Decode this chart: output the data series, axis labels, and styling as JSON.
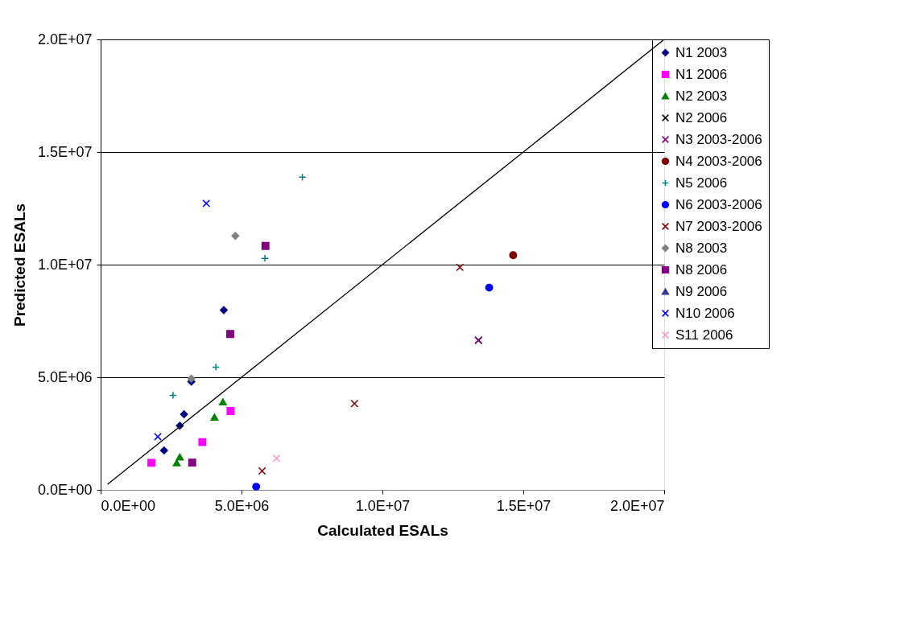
{
  "chart_data": {
    "type": "scatter",
    "xlabel": "Calculated ESALs",
    "ylabel": "Predicted ESALs",
    "xlim": [
      0,
      20000000
    ],
    "ylim": [
      0,
      20000000
    ],
    "xticks": [
      {
        "value": 0,
        "label": "0.0E+00"
      },
      {
        "value": 5000000,
        "label": "5.0E+06"
      },
      {
        "value": 10000000,
        "label": "1.0E+07"
      },
      {
        "value": 15000000,
        "label": "1.5E+07"
      },
      {
        "value": 20000000,
        "label": "2.0E+07"
      }
    ],
    "yticks": [
      {
        "value": 0,
        "label": "0.0E+00"
      },
      {
        "value": 5000000,
        "label": "5.0E+06"
      },
      {
        "value": 10000000,
        "label": "1.0E+07"
      },
      {
        "value": 15000000,
        "label": "1.5E+07"
      },
      {
        "value": 20000000,
        "label": "2.0E+07"
      }
    ],
    "grid": "y",
    "legend": "right",
    "series": [
      {
        "name": "N1 2003",
        "color": "#000080",
        "marker": "diamond",
        "x": [
          4370000,
          3220000,
          2960000,
          2810000,
          2250000
        ],
        "values": [
          7980000,
          4800000,
          3360000,
          2850000,
          1750000
        ]
      },
      {
        "name": "N1 2006",
        "color": "#ff00ff",
        "marker": "square",
        "x": [
          4610000,
          3610000,
          1800000
        ],
        "values": [
          3500000,
          2120000,
          1200000
        ]
      },
      {
        "name": "N2 2003",
        "color": "#008000",
        "marker": "triangle",
        "x": [
          4340000,
          4040000,
          2810000,
          2700000
        ],
        "values": [
          3910000,
          3230000,
          1460000,
          1200000
        ]
      },
      {
        "name": "N2 2006",
        "color": "#000000",
        "marker": "cross",
        "x": [
          13410000
        ],
        "values": [
          6640000
        ]
      },
      {
        "name": "N3 2003-2006",
        "color": "#800080",
        "marker": "cross",
        "x": [
          13410000
        ],
        "values": [
          6640000
        ]
      },
      {
        "name": "N4 2003-2006",
        "color": "#800000",
        "marker": "circle",
        "x": [
          14640000
        ],
        "values": [
          10420000
        ]
      },
      {
        "name": "N5 2006",
        "color": "#008080",
        "marker": "plus",
        "x": [
          7160000,
          5830000,
          4090000,
          2570000
        ],
        "values": [
          13880000,
          10280000,
          5450000,
          4200000
        ]
      },
      {
        "name": "N6 2003-2006",
        "color": "#0000ff",
        "marker": "circle",
        "x": [
          13790000,
          5520000
        ],
        "values": [
          8980000,
          140000
        ]
      },
      {
        "name": "N7 2003-2006",
        "color": "#800000",
        "marker": "cross",
        "x": [
          12750000,
          9010000,
          5730000
        ],
        "values": [
          9880000,
          3830000,
          840000
        ]
      },
      {
        "name": "N8 2003",
        "color": "#808080",
        "marker": "diamond",
        "x": [
          4780000,
          3220000
        ],
        "values": [
          11280000,
          4940000
        ]
      },
      {
        "name": "N8 2006",
        "color": "#800080",
        "marker": "square",
        "x": [
          5850000,
          4600000,
          3250000
        ],
        "values": [
          10830000,
          6920000,
          1210000
        ]
      },
      {
        "name": "N9 2006",
        "color": "#333399",
        "marker": "triangle"
      },
      {
        "name": "N10 2006",
        "color": "#0000ff",
        "marker": "cross",
        "x": [
          3750000,
          2030000
        ],
        "values": [
          12720000,
          2360000
        ]
      },
      {
        "name": "S11 2006",
        "color": "#ff99cc",
        "marker": "cross",
        "x": [
          6240000
        ],
        "values": [
          1400000
        ]
      },
      {
        "type": "line",
        "color": "#000000",
        "line_style": "solid",
        "x": [
          250000,
          20000000
        ],
        "values": [
          250000,
          20000000
        ]
      }
    ]
  }
}
